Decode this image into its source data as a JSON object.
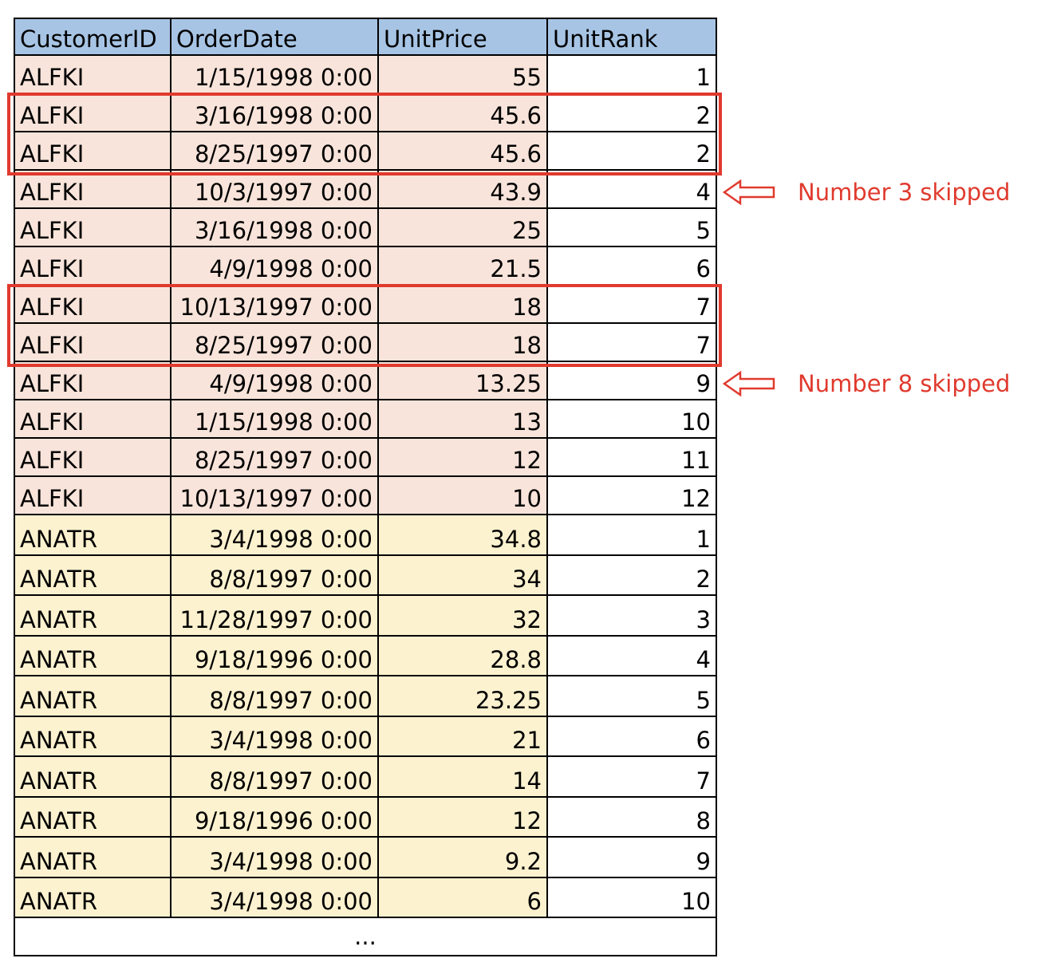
{
  "table": {
    "columns": [
      "CustomerID",
      "OrderDate",
      "UnitPrice",
      "UnitRank"
    ],
    "rows": [
      {
        "customer": "ALFKI",
        "date": "1/15/1998 0:00",
        "price": "55",
        "rank": "1",
        "group": "alfki"
      },
      {
        "customer": "ALFKI",
        "date": "3/16/1998 0:00",
        "price": "45.6",
        "rank": "2",
        "group": "alfki"
      },
      {
        "customer": "ALFKI",
        "date": "8/25/1997 0:00",
        "price": "45.6",
        "rank": "2",
        "group": "alfki"
      },
      {
        "customer": "ALFKI",
        "date": "10/3/1997 0:00",
        "price": "43.9",
        "rank": "4",
        "group": "alfki"
      },
      {
        "customer": "ALFKI",
        "date": "3/16/1998 0:00",
        "price": "25",
        "rank": "5",
        "group": "alfki"
      },
      {
        "customer": "ALFKI",
        "date": "4/9/1998 0:00",
        "price": "21.5",
        "rank": "6",
        "group": "alfki"
      },
      {
        "customer": "ALFKI",
        "date": "10/13/1997 0:00",
        "price": "18",
        "rank": "7",
        "group": "alfki"
      },
      {
        "customer": "ALFKI",
        "date": "8/25/1997 0:00",
        "price": "18",
        "rank": "7",
        "group": "alfki"
      },
      {
        "customer": "ALFKI",
        "date": "4/9/1998 0:00",
        "price": "13.25",
        "rank": "9",
        "group": "alfki"
      },
      {
        "customer": "ALFKI",
        "date": "1/15/1998 0:00",
        "price": "13",
        "rank": "10",
        "group": "alfki"
      },
      {
        "customer": "ALFKI",
        "date": "8/25/1997 0:00",
        "price": "12",
        "rank": "11",
        "group": "alfki"
      },
      {
        "customer": "ALFKI",
        "date": "10/13/1997 0:00",
        "price": "10",
        "rank": "12",
        "group": "alfki"
      },
      {
        "customer": "ANATR",
        "date": "3/4/1998 0:00",
        "price": "34.8",
        "rank": "1",
        "group": "anatr"
      },
      {
        "customer": "ANATR",
        "date": "8/8/1997 0:00",
        "price": "34",
        "rank": "2",
        "group": "anatr"
      },
      {
        "customer": "ANATR",
        "date": "11/28/1997 0:00",
        "price": "32",
        "rank": "3",
        "group": "anatr"
      },
      {
        "customer": "ANATR",
        "date": "9/18/1996 0:00",
        "price": "28.8",
        "rank": "4",
        "group": "anatr"
      },
      {
        "customer": "ANATR",
        "date": "8/8/1997 0:00",
        "price": "23.25",
        "rank": "5",
        "group": "anatr"
      },
      {
        "customer": "ANATR",
        "date": "3/4/1998 0:00",
        "price": "21",
        "rank": "6",
        "group": "anatr"
      },
      {
        "customer": "ANATR",
        "date": "8/8/1997 0:00",
        "price": "14",
        "rank": "7",
        "group": "anatr"
      },
      {
        "customer": "ANATR",
        "date": "9/18/1996 0:00",
        "price": "12",
        "rank": "8",
        "group": "anatr"
      },
      {
        "customer": "ANATR",
        "date": "3/4/1998 0:00",
        "price": "9.2",
        "rank": "9",
        "group": "anatr"
      },
      {
        "customer": "ANATR",
        "date": "3/4/1998 0:00",
        "price": "6",
        "rank": "10",
        "group": "anatr"
      }
    ],
    "ellipsis": "..."
  },
  "annotations": [
    {
      "text": "Number 3 skipped",
      "icon": "arrow-left-icon"
    },
    {
      "text": "Number 8 skipped",
      "icon": "arrow-left-icon"
    }
  ],
  "colors": {
    "header_bg": "#a7c4e4",
    "alfki_bg": "#f8e4da",
    "anatr_bg": "#fdf2cf",
    "highlight": "#e03a2e"
  }
}
